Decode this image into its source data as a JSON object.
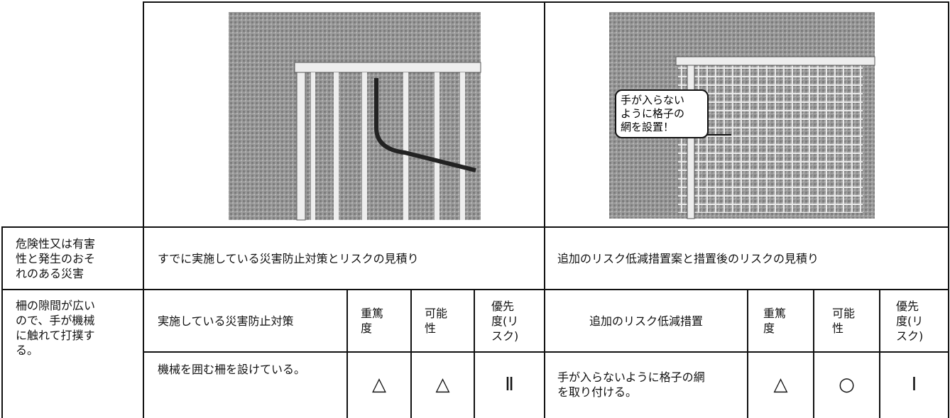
{
  "images": {
    "callout": [
      "手が入らない",
      "ように格子の",
      "網を設置！"
    ]
  },
  "table": {
    "header_hazard": "危険性又は有害性と発生のおそれのある災害",
    "header_current": "すでに実施している災害防止対策とリスクの見積り",
    "header_additional": "追加のリスク低減措置案と措置後のリスクの見積り",
    "hazard": "柵の隙間が広いので、手が機械に触れて打撲する。",
    "current_columns": [
      "実施している災害防止対策",
      "重篤度",
      "可能性",
      "優先度(リスク)"
    ],
    "additional_columns": [
      "追加のリスク低減措置",
      "重篤度",
      "可能性",
      "優先度(リスク)"
    ],
    "current_row": [
      "機械を囲む柵を設けている。",
      "△",
      "△",
      "Ⅱ"
    ],
    "additional_row": [
      "手が入らないように格子の網を取り付ける。",
      "△",
      "○",
      "Ⅰ"
    ]
  }
}
